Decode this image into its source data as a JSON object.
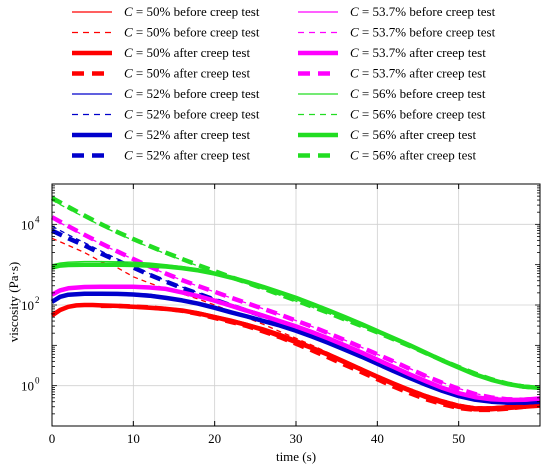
{
  "chart_data": {
    "type": "line",
    "title": "",
    "xlabel": "time (s)",
    "ylabel": "viscosity (Pa·s)",
    "xlim": [
      0,
      60
    ],
    "ylim": [
      0.1,
      100000
    ],
    "y_scale": "log",
    "x_ticks": [
      0,
      10,
      20,
      30,
      40,
      50
    ],
    "y_ticks": [
      {
        "value": 1,
        "base": "10",
        "exp": "0"
      },
      {
        "value": 100,
        "base": "10",
        "exp": "2"
      },
      {
        "value": 10000,
        "base": "10",
        "exp": "4"
      }
    ],
    "grid": true,
    "legend_placement": "top",
    "colors": {
      "50": "#ff0000",
      "52": "#0000cc",
      "53.7": "#ff00ff",
      "56": "#22dd22"
    },
    "series": [
      {
        "name": "C = 50% before creep test",
        "conc": "50",
        "style": "thin-solid",
        "x": [
          0,
          1,
          2,
          3,
          4,
          5,
          6,
          8,
          10,
          12,
          14,
          16,
          18,
          20,
          22,
          24,
          26,
          28,
          30,
          32,
          34,
          36,
          38,
          40,
          42,
          44,
          46,
          48,
          50,
          52,
          54,
          56,
          58,
          60
        ],
        "y": [
          60,
          80,
          95,
          100,
          100,
          100,
          100,
          97,
          95,
          90,
          85,
          78,
          68,
          55,
          45,
          35,
          27,
          20,
          14,
          9.5,
          6.5,
          4.3,
          2.8,
          1.85,
          1.25,
          0.85,
          0.6,
          0.45,
          0.35,
          0.3,
          0.3,
          0.32,
          0.35,
          0.38
        ]
      },
      {
        "name": "C = 50% before creep test",
        "conc": "50",
        "style": "thin-dashed",
        "x": [
          0,
          2,
          4,
          6,
          8,
          10,
          12,
          14,
          16,
          18,
          20,
          22,
          24,
          26,
          28,
          30,
          32,
          34,
          36,
          38,
          40,
          42,
          44,
          46,
          48,
          50,
          52,
          54,
          56,
          58,
          60
        ],
        "y": [
          4500,
          3000,
          2000,
          1200,
          850,
          500,
          350,
          250,
          190,
          140,
          100,
          70,
          48,
          33,
          22,
          15,
          10,
          6.5,
          4.2,
          2.8,
          1.8,
          1.2,
          0.85,
          0.6,
          0.45,
          0.35,
          0.3,
          0.3,
          0.32,
          0.35,
          0.38
        ]
      },
      {
        "name": "C = 50% after creep test",
        "conc": "50",
        "style": "thick-solid",
        "x": [
          0,
          1,
          2,
          3,
          4,
          5,
          6,
          8,
          10,
          12,
          14,
          16,
          18,
          20,
          22,
          24,
          26,
          28,
          30,
          32,
          34,
          36,
          38,
          40,
          42,
          44,
          46,
          48,
          50,
          52,
          54,
          56,
          58,
          60
        ],
        "y": [
          55,
          75,
          90,
          98,
          100,
          100,
          98,
          95,
          90,
          85,
          80,
          73,
          62,
          50,
          40,
          32,
          24,
          17,
          12,
          8.5,
          5.8,
          3.8,
          2.5,
          1.65,
          1.1,
          0.75,
          0.52,
          0.38,
          0.3,
          0.26,
          0.26,
          0.28,
          0.3,
          0.32
        ]
      },
      {
        "name": "C = 50% after creep test",
        "conc": "50",
        "style": "thick-dashed",
        "x": [
          6,
          8,
          10,
          12,
          14,
          16,
          18,
          20,
          22,
          24,
          26,
          28,
          30,
          32,
          34,
          36,
          38,
          40,
          42,
          44,
          46,
          48,
          50,
          52,
          54,
          56,
          58,
          60
        ],
        "y": [
          95,
          95,
          92,
          87,
          80,
          72,
          60,
          48,
          38,
          30,
          22,
          16,
          11,
          7.5,
          5,
          3.3,
          2.2,
          1.45,
          0.95,
          0.65,
          0.46,
          0.35,
          0.28,
          0.25,
          0.25,
          0.27,
          0.3,
          0.33
        ]
      },
      {
        "name": "C = 52% before creep test",
        "conc": "52",
        "style": "thin-solid",
        "x": [
          0,
          1,
          2,
          4,
          6,
          8,
          10,
          12,
          14,
          16,
          18,
          20,
          22,
          24,
          26,
          28,
          30,
          32,
          34,
          36,
          38,
          40,
          42,
          44,
          46,
          48,
          50,
          52,
          54,
          56,
          58,
          60
        ],
        "y": [
          130,
          170,
          190,
          200,
          200,
          200,
          195,
          185,
          160,
          140,
          115,
          90,
          70,
          55,
          43,
          33,
          25,
          18,
          12.5,
          8.5,
          5.8,
          3.8,
          2.5,
          1.7,
          1.15,
          0.8,
          0.6,
          0.48,
          0.42,
          0.4,
          0.4,
          0.42
        ]
      },
      {
        "name": "C = 52% before creep test",
        "conc": "52",
        "style": "thin-dashed",
        "x": [
          0,
          2,
          4,
          6,
          8,
          10,
          12,
          14,
          16,
          18,
          20,
          22,
          24,
          26,
          28,
          30,
          32,
          34,
          36,
          38,
          40,
          42,
          44,
          46,
          48,
          50,
          52,
          54,
          56,
          58,
          60
        ],
        "y": [
          9000,
          5500,
          3500,
          2200,
          1400,
          950,
          600,
          400,
          280,
          200,
          145,
          105,
          78,
          58,
          42,
          30,
          21,
          14,
          9.5,
          6.3,
          4.2,
          2.8,
          1.85,
          1.25,
          0.88,
          0.65,
          0.5,
          0.43,
          0.4,
          0.4,
          0.42
        ]
      },
      {
        "name": "C = 52% after creep test",
        "conc": "52",
        "style": "thick-solid",
        "x": [
          0,
          1,
          2,
          4,
          6,
          8,
          10,
          12,
          14,
          16,
          18,
          20,
          22,
          24,
          26,
          28,
          30,
          32,
          34,
          36,
          38,
          40,
          42,
          44,
          46,
          48,
          50,
          52,
          54,
          56,
          58,
          60
        ],
        "y": [
          120,
          160,
          180,
          190,
          190,
          188,
          182,
          170,
          150,
          130,
          108,
          85,
          66,
          52,
          40,
          31,
          23,
          16.5,
          11.5,
          7.8,
          5.3,
          3.5,
          2.3,
          1.55,
          1.05,
          0.74,
          0.55,
          0.45,
          0.4,
          0.38,
          0.38,
          0.4
        ]
      },
      {
        "name": "C = 52% after creep test",
        "conc": "52",
        "style": "thick-dashed",
        "x": [
          0,
          2,
          4,
          6,
          8,
          10,
          12,
          14,
          16,
          18,
          20,
          22,
          24,
          26,
          28,
          30,
          32,
          34,
          36,
          38,
          40,
          42,
          44,
          46,
          48,
          50,
          52,
          54,
          56,
          58,
          60
        ],
        "y": [
          7000,
          4500,
          3000,
          1900,
          1250,
          850,
          560,
          380,
          265,
          190,
          135,
          98,
          72,
          53,
          39,
          28,
          19.5,
          13,
          8.8,
          5.9,
          3.9,
          2.6,
          1.72,
          1.15,
          0.8,
          0.6,
          0.47,
          0.41,
          0.38,
          0.38,
          0.4
        ]
      },
      {
        "name": "C = 53.7% before creep test",
        "conc": "53.7",
        "style": "thin-solid",
        "x": [
          0,
          1,
          2,
          4,
          6,
          8,
          10,
          12,
          14,
          16,
          18,
          20,
          22,
          24,
          26,
          28,
          30,
          32,
          34,
          36,
          38,
          40,
          42,
          44,
          46,
          48,
          50,
          52,
          54,
          56,
          58,
          60
        ],
        "y": [
          200,
          250,
          280,
          300,
          300,
          300,
          300,
          290,
          270,
          220,
          175,
          135,
          100,
          75,
          56,
          42,
          31,
          22,
          15.5,
          10.5,
          7,
          4.6,
          3,
          2,
          1.35,
          0.92,
          0.68,
          0.55,
          0.48,
          0.46,
          0.47,
          0.5
        ]
      },
      {
        "name": "C = 53.7% before creep test",
        "conc": "53.7",
        "style": "thin-dashed",
        "x": [
          0,
          2,
          4,
          6,
          8,
          10,
          12,
          14,
          16,
          18,
          20,
          22,
          24,
          26,
          28,
          30,
          32,
          34,
          36,
          38,
          40,
          42,
          44,
          46,
          48,
          50,
          52,
          54,
          56,
          58,
          60
        ],
        "y": [
          14000,
          8500,
          5200,
          3300,
          2100,
          1350,
          880,
          590,
          410,
          290,
          210,
          150,
          110,
          80,
          58,
          41,
          29,
          20,
          13.5,
          9,
          6,
          4,
          2.65,
          1.75,
          1.2,
          0.85,
          0.64,
          0.53,
          0.48,
          0.47,
          0.5
        ]
      },
      {
        "name": "C = 53.7% after creep test",
        "conc": "53.7",
        "style": "thick-solid",
        "x": [
          0,
          1,
          2,
          4,
          6,
          8,
          10,
          12,
          14,
          16,
          18,
          20,
          22,
          24,
          26,
          28,
          30,
          32,
          34,
          36,
          38,
          40,
          42,
          44,
          46,
          48,
          50,
          52,
          54,
          56,
          58,
          60
        ],
        "y": [
          180,
          230,
          260,
          280,
          285,
          285,
          282,
          272,
          250,
          205,
          165,
          128,
          96,
          72,
          54,
          40,
          29.5,
          21,
          14.8,
          10,
          6.7,
          4.4,
          2.9,
          1.9,
          1.28,
          0.88,
          0.65,
          0.52,
          0.46,
          0.44,
          0.45,
          0.48
        ]
      },
      {
        "name": "C = 53.7% after creep test",
        "conc": "53.7",
        "style": "thick-dashed",
        "x": [
          0,
          2,
          4,
          6,
          8,
          10,
          12,
          14,
          16,
          18,
          20,
          22,
          24,
          26,
          28,
          30,
          32,
          34,
          36,
          38,
          40,
          42,
          44,
          46,
          48,
          50,
          52,
          54,
          56,
          58,
          60
        ],
        "y": [
          15000,
          9000,
          5500,
          3400,
          2150,
          1380,
          900,
          600,
          415,
          295,
          212,
          152,
          110,
          80,
          58,
          41,
          29,
          20,
          13.5,
          9,
          6,
          4,
          2.6,
          1.72,
          1.18,
          0.83,
          0.62,
          0.51,
          0.46,
          0.45,
          0.48
        ]
      },
      {
        "name": "C = 56% before creep test",
        "conc": "56",
        "style": "thin-solid",
        "x": [
          0,
          1,
          2,
          4,
          6,
          8,
          10,
          12,
          14,
          16,
          18,
          20,
          22,
          24,
          26,
          28,
          30,
          32,
          34,
          36,
          38,
          40,
          42,
          44,
          46,
          48,
          50,
          52,
          54,
          56,
          58,
          60
        ],
        "y": [
          1000,
          1100,
          1150,
          1200,
          1200,
          1180,
          1150,
          1100,
          1000,
          900,
          780,
          650,
          520,
          400,
          300,
          220,
          160,
          112,
          78,
          53,
          36,
          24,
          16,
          10.5,
          6.8,
          4.4,
          2.9,
          2,
          1.45,
          1.15,
          0.98,
          0.9
        ]
      },
      {
        "name": "C = 56% before creep test",
        "conc": "56",
        "style": "thin-dashed",
        "x": [
          0,
          2,
          4,
          6,
          8,
          10,
          12,
          14,
          16,
          18,
          20,
          22,
          24,
          26,
          28,
          30,
          32,
          34,
          36,
          38,
          40,
          42,
          44,
          46,
          48,
          50,
          52,
          54,
          56,
          58,
          60
        ],
        "y": [
          40000,
          24000,
          15000,
          9300,
          6000,
          4000,
          2700,
          1850,
          1300,
          920,
          650,
          470,
          340,
          245,
          175,
          125,
          88,
          62,
          43,
          30,
          20.5,
          14,
          9.5,
          6.3,
          4.2,
          2.85,
          2,
          1.45,
          1.12,
          0.95,
          0.88
        ]
      },
      {
        "name": "C = 56% after creep test",
        "conc": "56",
        "style": "thick-solid",
        "x": [
          0,
          1,
          2,
          4,
          6,
          8,
          10,
          12,
          14,
          16,
          18,
          20,
          22,
          24,
          26,
          28,
          30,
          32,
          34,
          36,
          38,
          40,
          42,
          44,
          46,
          48,
          50,
          52,
          54,
          56,
          58,
          60
        ],
        "y": [
          850,
          950,
          980,
          1000,
          1000,
          990,
          980,
          950,
          900,
          820,
          720,
          600,
          480,
          370,
          280,
          205,
          150,
          105,
          73,
          50,
          34,
          22.5,
          15,
          10,
          6.5,
          4.2,
          2.8,
          1.9,
          1.4,
          1.1,
          0.95,
          0.88
        ]
      },
      {
        "name": "C = 56% after creep test",
        "conc": "56",
        "style": "thick-dashed",
        "x": [
          0,
          2,
          4,
          6,
          8,
          10,
          12,
          14,
          16,
          18,
          20,
          22,
          24,
          26,
          28,
          30,
          32,
          34,
          36,
          38,
          40,
          42,
          44,
          46,
          48,
          50,
          52,
          54,
          56,
          58,
          60
        ],
        "y": [
          45000,
          27000,
          16500,
          10200,
          6500,
          4300,
          2900,
          1980,
          1380,
          970,
          690,
          495,
          355,
          255,
          182,
          130,
          91,
          64,
          44,
          30.5,
          21,
          14.2,
          9.6,
          6.4,
          4.25,
          2.88,
          2,
          1.45,
          1.12,
          0.95,
          0.88
        ]
      }
    ]
  }
}
